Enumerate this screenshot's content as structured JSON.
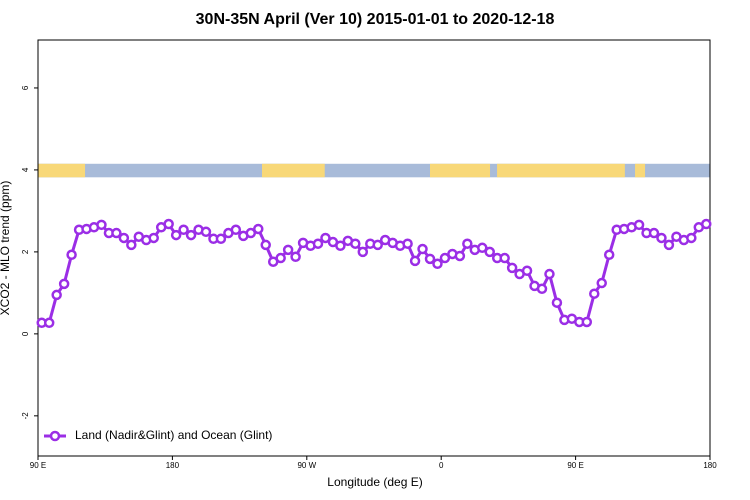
{
  "chart_data": {
    "type": "line",
    "title": "30N-35N April (Ver 10)   2015-01-01 to 2020-12-18",
    "x_label": "Longitude (deg E)",
    "y_label": "XCO2 - MLO trend (ppm)",
    "xlim": [
      90,
      540
    ],
    "ylim": [
      -2.98,
      7.17
    ],
    "xticks": [
      {
        "value": 90,
        "label": "90 E"
      },
      180,
      {
        "value": 270,
        "label": "90 W"
      },
      {
        "value": 360,
        "label": "0"
      },
      {
        "value": 450,
        "label": "90 E"
      },
      {
        "value": 540,
        "label": "180"
      }
    ],
    "yticks": [
      -2,
      0,
      2,
      4,
      6
    ],
    "legend": "bottom-left",
    "land_strip": {
      "y": [
        3.82,
        4.15
      ],
      "ocean_color": "#a8bbd9",
      "land_color": "#f8d878",
      "land": [
        [
          90,
          121.5
        ],
        [
          240,
          282
        ],
        [
          352.5,
          392.7
        ],
        [
          397.4,
          483
        ],
        [
          489.8,
          496.5
        ]
      ]
    },
    "x": [
      92.5,
      97.5,
      102.5,
      107.5,
      112.5,
      117.5,
      122.5,
      127.5,
      132.5,
      137.5,
      142.5,
      147.5,
      152.5,
      157.5,
      162.5,
      167.5,
      172.5,
      177.5,
      182.5,
      187.5,
      192.5,
      197.5,
      202.5,
      207.5,
      212.5,
      217.5,
      222.5,
      227.5,
      232.5,
      237.5,
      242.5,
      247.5,
      252.5,
      257.5,
      262.5,
      267.5,
      272.5,
      277.5,
      282.5,
      287.5,
      292.5,
      297.5,
      302.5,
      307.5,
      312.5,
      317.5,
      322.5,
      327.5,
      332.5,
      337.5,
      342.5,
      347.5,
      352.5,
      357.5,
      362.5,
      367.5,
      372.5,
      377.5,
      382.5,
      387.5,
      392.5,
      397.5,
      402.5,
      407.5,
      412.5,
      417.5,
      422.5,
      427.5,
      432.5,
      437.5,
      442.5,
      447.5,
      452.5,
      457.5,
      462.5,
      467.5,
      472.5,
      477.5,
      482.5,
      487.5,
      492.5,
      497.5,
      502.5,
      507.5,
      512.5,
      517.5,
      522.5,
      527.5,
      532.5,
      537.5
    ],
    "series": [
      {
        "name": "Land (Nadir&Glint) and Ocean (Glint)",
        "color": "#9b2ee6",
        "values": [
          0.27,
          0.27,
          0.95,
          1.22,
          1.93,
          2.54,
          2.56,
          2.6,
          2.66,
          2.46,
          2.46,
          2.34,
          2.17,
          2.37,
          2.29,
          2.34,
          2.6,
          2.68,
          2.41,
          2.54,
          2.41,
          2.54,
          2.49,
          2.32,
          2.32,
          2.46,
          2.54,
          2.39,
          2.46,
          2.56,
          2.17,
          1.76,
          1.85,
          2.05,
          1.88,
          2.22,
          2.15,
          2.2,
          2.34,
          2.24,
          2.15,
          2.27,
          2.2,
          2.0,
          2.2,
          2.17,
          2.29,
          2.22,
          2.15,
          2.2,
          1.78,
          2.07,
          1.83,
          1.71,
          1.85,
          1.95,
          1.9,
          2.2,
          2.05,
          2.1,
          2.0,
          1.85,
          1.85,
          1.61,
          1.46,
          1.54,
          1.17,
          1.1,
          1.46,
          0.76,
          0.34,
          0.37,
          0.29,
          0.29,
          0.98,
          1.24,
          1.93,
          2.54,
          2.56,
          2.6,
          2.66,
          2.46,
          2.46,
          2.34,
          2.17,
          2.37,
          2.29,
          2.34,
          2.6,
          2.68
        ]
      }
    ]
  }
}
